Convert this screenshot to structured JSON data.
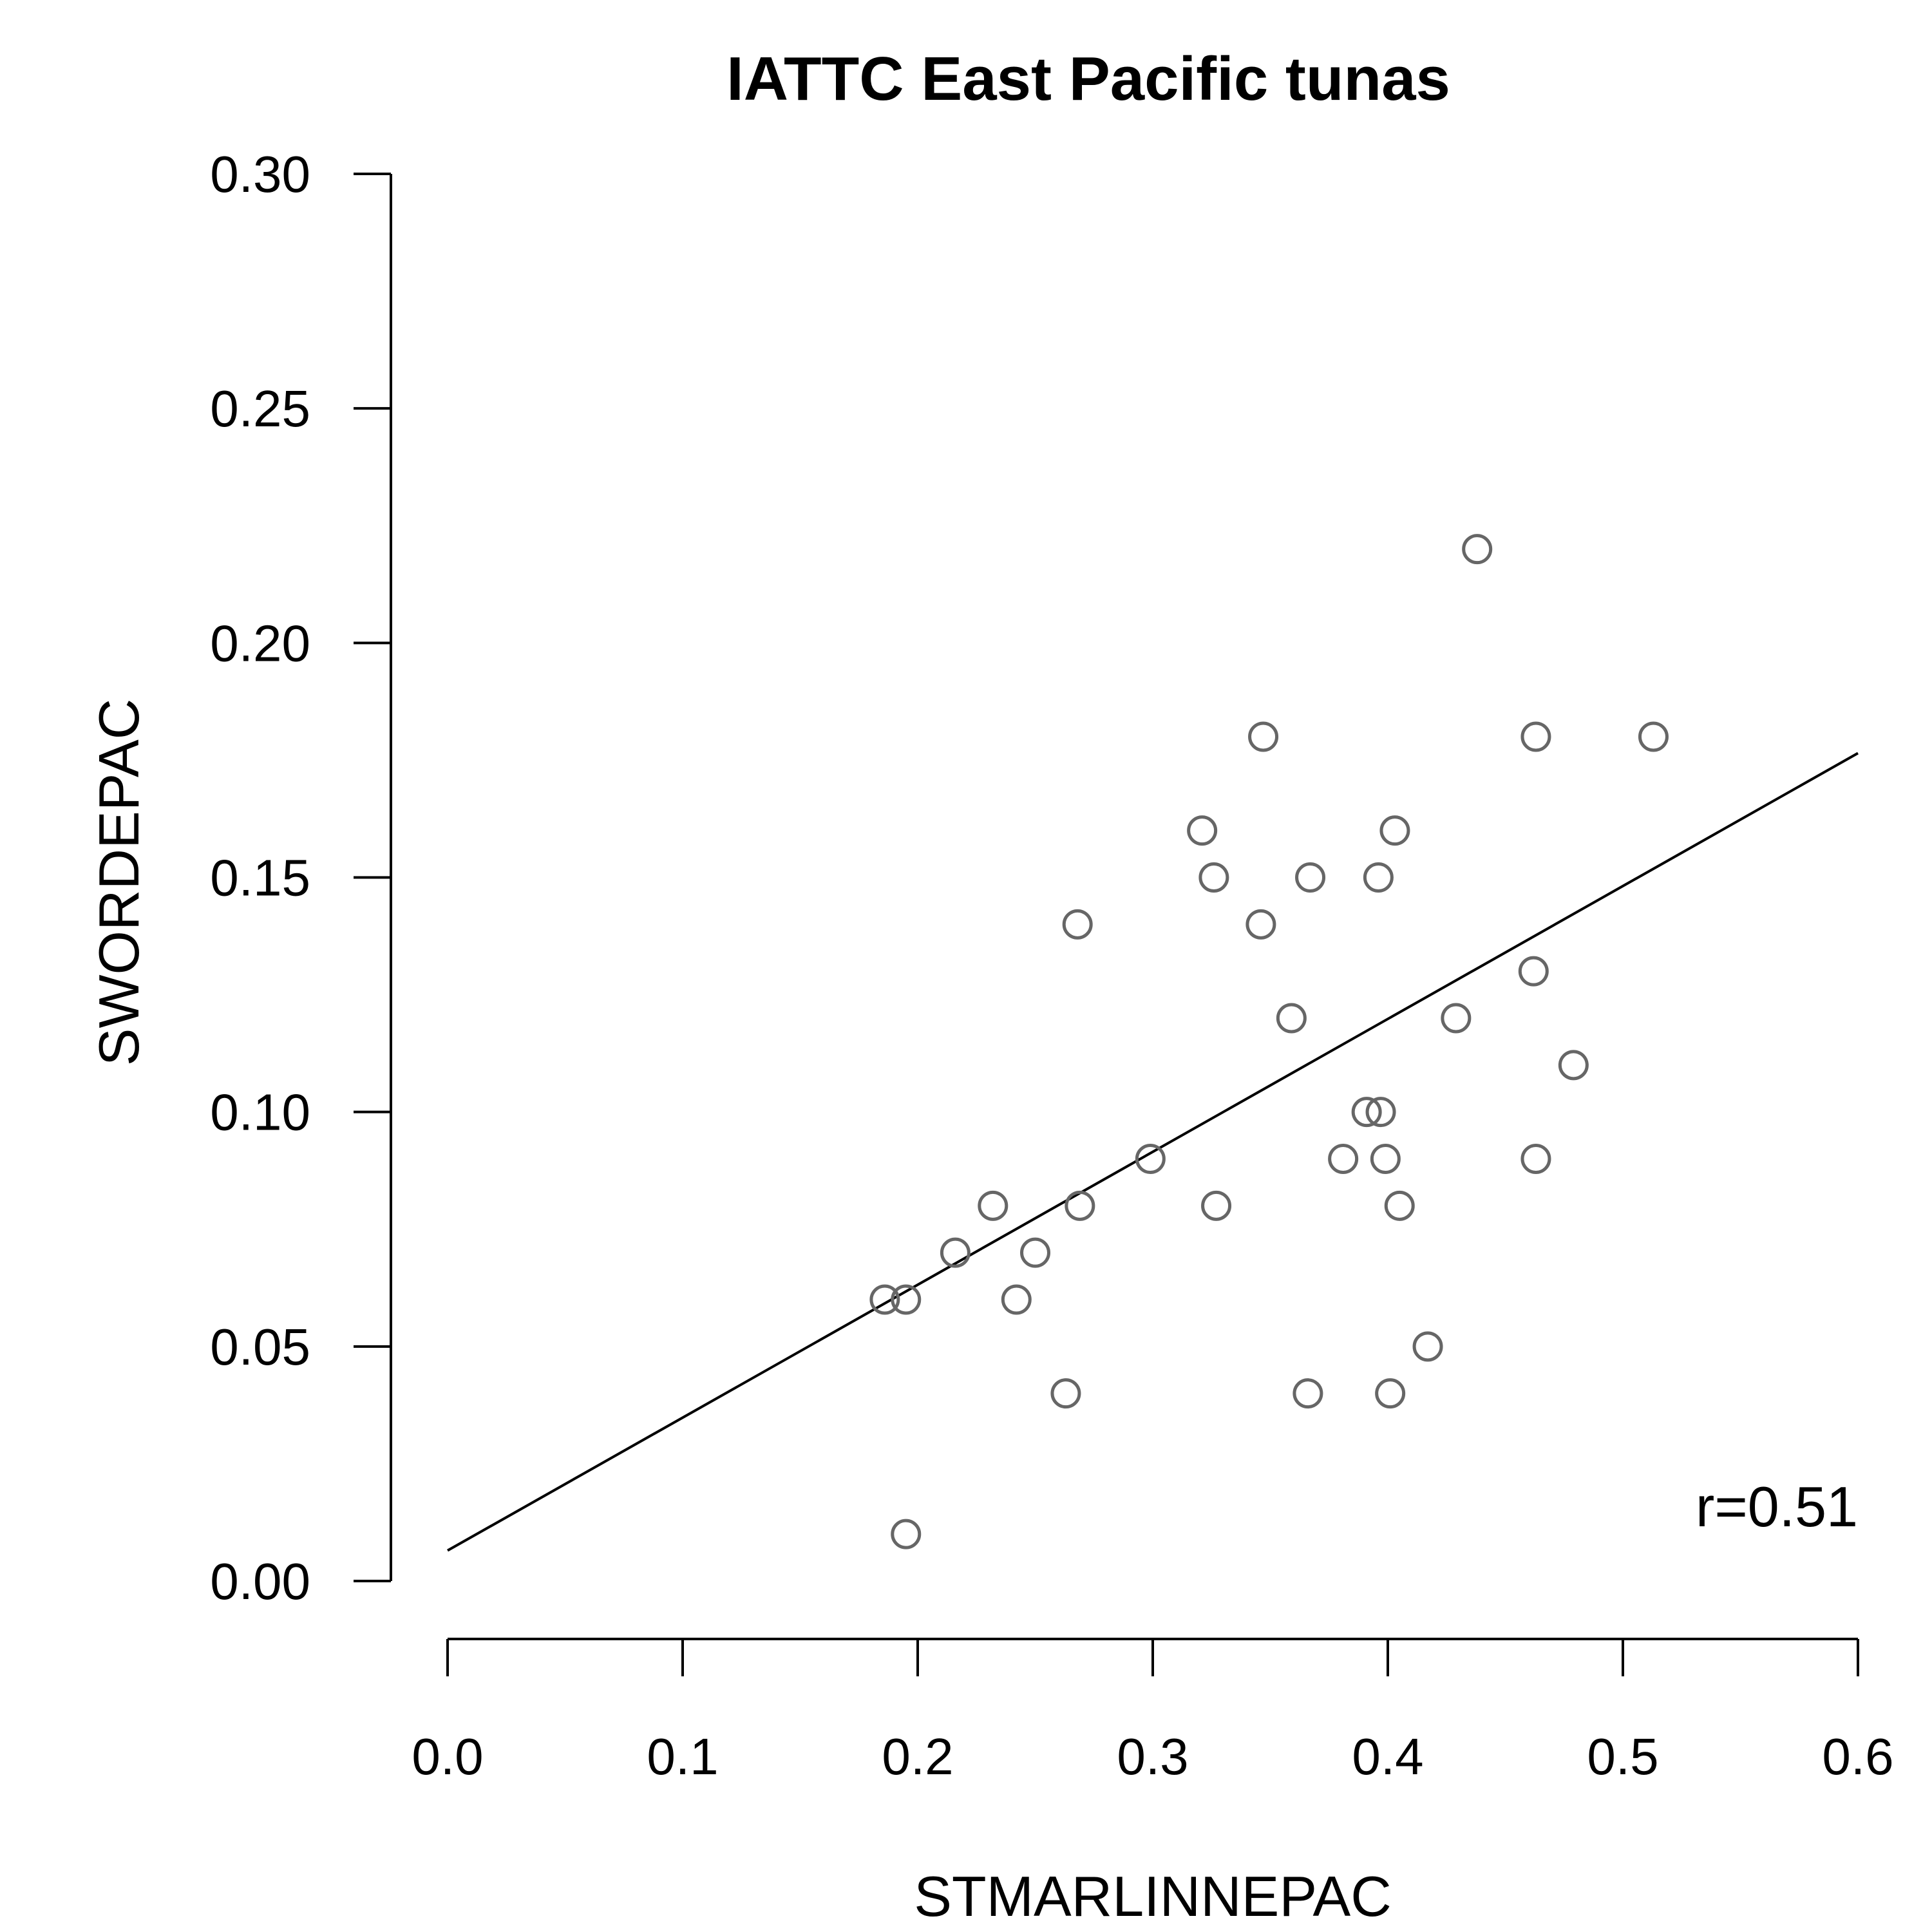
{
  "chart_data": {
    "type": "scatter",
    "title": "IATTC East Pacific tunas",
    "xlabel": "STMARLINNEPAC",
    "ylabel": "SWORDEPAC",
    "xlim": [
      0.0,
      0.6
    ],
    "ylim": [
      0.0,
      0.3
    ],
    "x_ticks": [
      "0.0",
      "0.1",
      "0.2",
      "0.3",
      "0.4",
      "0.5",
      "0.6"
    ],
    "y_ticks": [
      "0.00",
      "0.05",
      "0.10",
      "0.15",
      "0.20",
      "0.25",
      "0.30"
    ],
    "annotation": "r=0.51",
    "grid": false,
    "point_color": "#666666",
    "fit_line": {
      "x": [
        0.0,
        0.6
      ],
      "y": [
        0.0065,
        0.1765
      ]
    },
    "points": [
      {
        "x": 0.186,
        "y": 0.06
      },
      {
        "x": 0.195,
        "y": 0.06
      },
      {
        "x": 0.195,
        "y": 0.01
      },
      {
        "x": 0.216,
        "y": 0.07
      },
      {
        "x": 0.232,
        "y": 0.08
      },
      {
        "x": 0.242,
        "y": 0.06
      },
      {
        "x": 0.25,
        "y": 0.07
      },
      {
        "x": 0.263,
        "y": 0.04
      },
      {
        "x": 0.268,
        "y": 0.14
      },
      {
        "x": 0.269,
        "y": 0.08
      },
      {
        "x": 0.299,
        "y": 0.09
      },
      {
        "x": 0.321,
        "y": 0.16
      },
      {
        "x": 0.326,
        "y": 0.15
      },
      {
        "x": 0.327,
        "y": 0.08
      },
      {
        "x": 0.346,
        "y": 0.14
      },
      {
        "x": 0.347,
        "y": 0.18
      },
      {
        "x": 0.359,
        "y": 0.12
      },
      {
        "x": 0.366,
        "y": 0.04
      },
      {
        "x": 0.367,
        "y": 0.15
      },
      {
        "x": 0.381,
        "y": 0.09
      },
      {
        "x": 0.391,
        "y": 0.1
      },
      {
        "x": 0.396,
        "y": 0.15
      },
      {
        "x": 0.397,
        "y": 0.1
      },
      {
        "x": 0.399,
        "y": 0.09
      },
      {
        "x": 0.401,
        "y": 0.04
      },
      {
        "x": 0.403,
        "y": 0.16
      },
      {
        "x": 0.405,
        "y": 0.08
      },
      {
        "x": 0.417,
        "y": 0.05
      },
      {
        "x": 0.429,
        "y": 0.12
      },
      {
        "x": 0.438,
        "y": 0.22
      },
      {
        "x": 0.462,
        "y": 0.13
      },
      {
        "x": 0.463,
        "y": 0.18
      },
      {
        "x": 0.463,
        "y": 0.09
      },
      {
        "x": 0.479,
        "y": 0.11
      },
      {
        "x": 0.513,
        "y": 0.18
      }
    ]
  }
}
